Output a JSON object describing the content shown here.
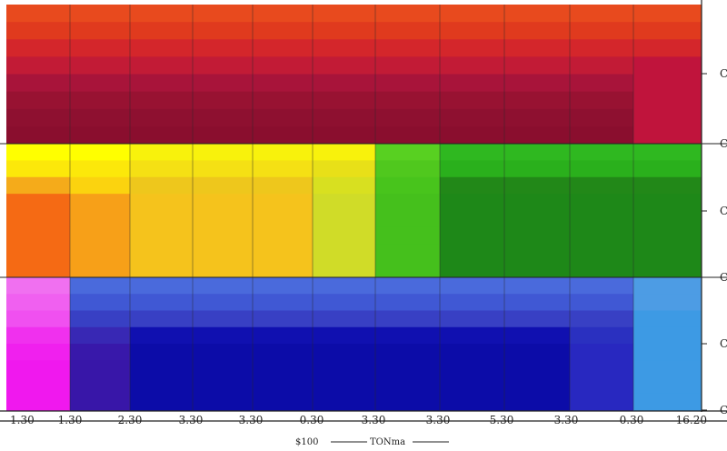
{
  "chart_data": {
    "type": "heatmap",
    "title": "",
    "x_tick_labels": [
      "1.30",
      "1.30",
      "2.30",
      "3.30",
      "3.30",
      "0.30",
      "3.30",
      "3.30",
      "5.30",
      "3.30",
      "0.30",
      "16.20"
    ],
    "y_tick_labels": [
      "C",
      "C",
      "C",
      "C",
      "C",
      "C"
    ],
    "caption_left": "$100",
    "caption_right": "TONma",
    "grid": true,
    "bands": [
      {
        "name": "red",
        "rows": [
          [
            "#e84a1e",
            "#e84a1e",
            "#e84a1e",
            "#e84a1e",
            "#e84a1e",
            "#e84a1e",
            "#e84a1e",
            "#e84a1e",
            "#e84a1e",
            "#e84a1e",
            "#e84a1e"
          ],
          [
            "#e03a1e",
            "#e03a1e",
            "#e03a1e",
            "#e03a1e",
            "#e03a1e",
            "#e03a1e",
            "#e03a1e",
            "#e03a1e",
            "#e03a1e",
            "#e03a1e",
            "#e03a1e"
          ],
          [
            "#d4262b",
            "#d4262b",
            "#d4262b",
            "#d4262b",
            "#d4262b",
            "#d4262b",
            "#d4262b",
            "#d4262b",
            "#d4262b",
            "#d4262b",
            "#d4262b"
          ],
          [
            "#c21b36",
            "#c21b36",
            "#c21b36",
            "#c21b36",
            "#c21b36",
            "#c21b36",
            "#c21b36",
            "#c21b36",
            "#c21b36",
            "#c21b36",
            "#c0143c"
          ],
          [
            "#a8143a",
            "#a8143a",
            "#a8143a",
            "#a8143a",
            "#a8143a",
            "#a8143a",
            "#a8143a",
            "#a8143a",
            "#a8143a",
            "#a8143a",
            "#c0143c"
          ],
          [
            "#981232",
            "#981232",
            "#981232",
            "#981232",
            "#981232",
            "#981232",
            "#981232",
            "#981232",
            "#981232",
            "#981232",
            "#c0143c"
          ],
          [
            "#8e1030",
            "#8e1030",
            "#8e1030",
            "#8e1030",
            "#8e1030",
            "#8e1030",
            "#8e1030",
            "#8e1030",
            "#8e1030",
            "#8e1030",
            "#c0143c"
          ],
          [
            "#8a0e2e",
            "#8a0e2e",
            "#8a0e2e",
            "#8a0e2e",
            "#8a0e2e",
            "#8a0e2e",
            "#8a0e2e",
            "#8a0e2e",
            "#8a0e2e",
            "#8a0e2e",
            "#c0143c"
          ]
        ]
      },
      {
        "name": "yellow-green",
        "rows": [
          [
            "#ffff00",
            "#ffff00",
            "#f8f20c",
            "#f8f20c",
            "#f8f20c",
            "#f8f20c",
            "#58d021",
            "#2fb820",
            "#2fb820",
            "#2fb820",
            "#2fb820"
          ],
          [
            "#fce80a",
            "#fce80a",
            "#f5e014",
            "#f5e014",
            "#f5e014",
            "#e8e018",
            "#50c81e",
            "#2ab01c",
            "#2ab01c",
            "#2ab01c",
            "#2ab01c"
          ],
          [
            "#f5ab1a",
            "#fbd30f",
            "#eec71c",
            "#eec71c",
            "#eec71c",
            "#d8e020",
            "#48c41c",
            "#228818",
            "#228818",
            "#228818",
            "#228818"
          ],
          [
            "#f56a14",
            "#f7a018",
            "#f5c31c",
            "#f5c31c",
            "#f5c31c",
            "#d0dc28",
            "#45c01c",
            "#1e8818",
            "#1e8818",
            "#1e8818",
            "#1e8818"
          ],
          [
            "#f56a14",
            "#f7a018",
            "#f5c31c",
            "#f5c31c",
            "#f5c31c",
            "#d0dc28",
            "#45c01c",
            "#1e8818",
            "#1e8818",
            "#1e8818",
            "#1e8818"
          ],
          [
            "#f56a14",
            "#f7a018",
            "#f5c31c",
            "#f5c31c",
            "#f5c31c",
            "#d0dc28",
            "#45c01c",
            "#1e8818",
            "#1e8818",
            "#1e8818",
            "#1e8818"
          ],
          [
            "#f56a14",
            "#f7a018",
            "#f5c31c",
            "#f5c31c",
            "#f5c31c",
            "#d0dc28",
            "#45c01c",
            "#1e8818",
            "#1e8818",
            "#1e8818",
            "#1e8818"
          ],
          [
            "#f56a14",
            "#f7a018",
            "#f5c31c",
            "#f5c31c",
            "#f5c31c",
            "#d0dc28",
            "#45c01c",
            "#1e8818",
            "#1e8818",
            "#1e8818",
            "#1e8818"
          ]
        ]
      },
      {
        "name": "blue-magenta",
        "rows": [
          [
            "#f070f0",
            "#4a6adc",
            "#4a6adc",
            "#4a6adc",
            "#4a6adc",
            "#4a6adc",
            "#4a6adc",
            "#4a6adc",
            "#4a6adc",
            "#4a6adc",
            "#4d9ce4"
          ],
          [
            "#f060f0",
            "#4058d4",
            "#4058d4",
            "#4058d4",
            "#4058d4",
            "#4058d4",
            "#4058d4",
            "#4058d4",
            "#4058d4",
            "#4058d4",
            "#4d9ce4"
          ],
          [
            "#f050f0",
            "#3840c4",
            "#3840c4",
            "#3840c4",
            "#3840c4",
            "#3840c4",
            "#3840c4",
            "#3840c4",
            "#3840c4",
            "#3840c4",
            "#3d9ae4"
          ],
          [
            "#f030ee",
            "#3828b4",
            "#1010b0",
            "#1010b0",
            "#1010b0",
            "#1010b0",
            "#1010b0",
            "#1010b0",
            "#1010b0",
            "#2a30c0",
            "#3d9ae4"
          ],
          [
            "#f020ee",
            "#3818aa",
            "#0c0ca8",
            "#0c0ca8",
            "#0c0ca8",
            "#0c0ca8",
            "#0c0ca8",
            "#0c0ca8",
            "#0c0ca8",
            "#2828c0",
            "#3d9ae4"
          ],
          [
            "#f018ee",
            "#3816a8",
            "#0c0ca8",
            "#0c0ca8",
            "#0c0ca8",
            "#0c0ca8",
            "#0c0ca8",
            "#0c0ca8",
            "#0c0ca8",
            "#2828c0",
            "#3d9ae4"
          ],
          [
            "#f018ee",
            "#3816a8",
            "#0c0ca8",
            "#0c0ca8",
            "#0c0ca8",
            "#0c0ca8",
            "#0c0ca8",
            "#0c0ca8",
            "#0c0ca8",
            "#2828c0",
            "#3d9ae4"
          ],
          [
            "#f018ee",
            "#3816a8",
            "#0c0ca8",
            "#0c0ca8",
            "#0c0ca8",
            "#0c0ca8",
            "#0c0ca8",
            "#0c0ca8",
            "#0c0ca8",
            "#2828c0",
            "#3d9ae4"
          ]
        ]
      }
    ]
  }
}
